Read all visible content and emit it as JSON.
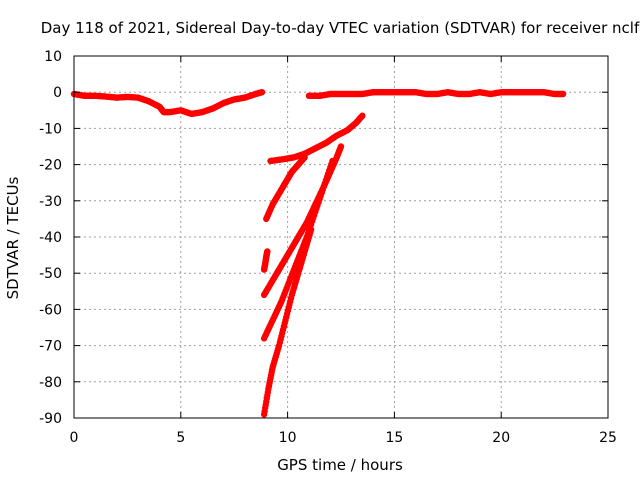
{
  "chart_data": {
    "type": "scatter",
    "title": "Day 118 of 2021, Sidereal Day-to-day VTEC variation (SDTVAR) for receiver nclf",
    "xlabel": "GPS time / hours",
    "ylabel": "SDTVAR / TECUs",
    "xlim": [
      0,
      25
    ],
    "ylim": [
      -90,
      10
    ],
    "xticks": [
      0,
      5,
      10,
      15,
      20,
      25
    ],
    "yticks": [
      -90,
      -80,
      -70,
      -60,
      -50,
      -40,
      -30,
      -20,
      -10,
      0,
      10
    ],
    "grid": true,
    "grid_style": "dotted",
    "legend": "none",
    "series": [
      {
        "color": "#ff0000",
        "x": [
          0.0,
          0.5,
          1.0,
          1.5,
          2.0,
          2.5,
          3.0,
          3.5,
          4.0,
          4.2,
          4.5,
          5.0,
          5.5,
          6.0,
          6.5,
          7.0,
          7.5,
          8.0,
          8.5,
          8.8
        ],
        "y": [
          -0.5,
          -1.0,
          -1.0,
          -1.2,
          -1.5,
          -1.3,
          -1.5,
          -2.5,
          -4.0,
          -5.5,
          -5.5,
          -5.0,
          -6.0,
          -5.5,
          -4.5,
          -3.0,
          -2.0,
          -1.5,
          -0.5,
          0.0
        ]
      },
      {
        "color": "#ff0000",
        "x": [
          11.0,
          11.5,
          12.0,
          12.5,
          13.0,
          13.5,
          14.0,
          14.5,
          15.0,
          15.5,
          16.0,
          16.5,
          17.0,
          17.5,
          18.0,
          18.5,
          19.0,
          19.5,
          20.0,
          20.5,
          21.0,
          21.5,
          22.0,
          22.5,
          22.9
        ],
        "y": [
          -1.0,
          -1.0,
          -0.5,
          -0.5,
          -0.5,
          -0.5,
          0.0,
          0.0,
          0.0,
          0.0,
          0.0,
          -0.5,
          -0.5,
          0.0,
          -0.5,
          -0.5,
          0.0,
          -0.5,
          0.0,
          0.0,
          0.0,
          0.0,
          0.0,
          -0.5,
          -0.5
        ]
      },
      {
        "color": "#ff0000",
        "x": [
          9.0,
          9.3,
          9.6,
          9.9,
          10.2,
          10.5,
          10.8
        ],
        "y": [
          -35,
          -31,
          -28,
          -25,
          -22,
          -20,
          -18
        ]
      },
      {
        "color": "#ff0000",
        "x": [
          9.2,
          9.8,
          10.3,
          10.8,
          11.3,
          11.8,
          12.3,
          12.8,
          13.2,
          13.5
        ],
        "y": [
          -19,
          -18.5,
          -18,
          -17,
          -15.5,
          -14,
          -12,
          -10.5,
          -8.5,
          -6.5
        ]
      },
      {
        "color": "#ff0000",
        "x": [
          8.9,
          8.95,
          9.0,
          9.05
        ],
        "y": [
          -49,
          -47.5,
          -45.5,
          -44
        ]
      },
      {
        "color": "#ff0000",
        "x": [
          8.9,
          9.3,
          9.7,
          10.1,
          10.5,
          10.9,
          11.3,
          11.7,
          12.0,
          12.3,
          12.5
        ],
        "y": [
          -56,
          -52,
          -48,
          -44,
          -40,
          -36,
          -31,
          -26,
          -22,
          -18,
          -15
        ]
      },
      {
        "color": "#ff0000",
        "x": [
          8.9,
          9.3,
          9.7,
          10.1,
          10.5,
          10.9,
          11.3,
          11.7,
          12.1
        ],
        "y": [
          -68,
          -63,
          -58,
          -52,
          -46,
          -40,
          -33,
          -26,
          -19
        ]
      },
      {
        "color": "#ff0000",
        "x": [
          8.9,
          9.1,
          9.3,
          9.6,
          9.9,
          10.2,
          10.5,
          10.8,
          11.1
        ],
        "y": [
          -89,
          -82,
          -76,
          -70,
          -63,
          -56,
          -50,
          -44,
          -38
        ]
      }
    ]
  }
}
